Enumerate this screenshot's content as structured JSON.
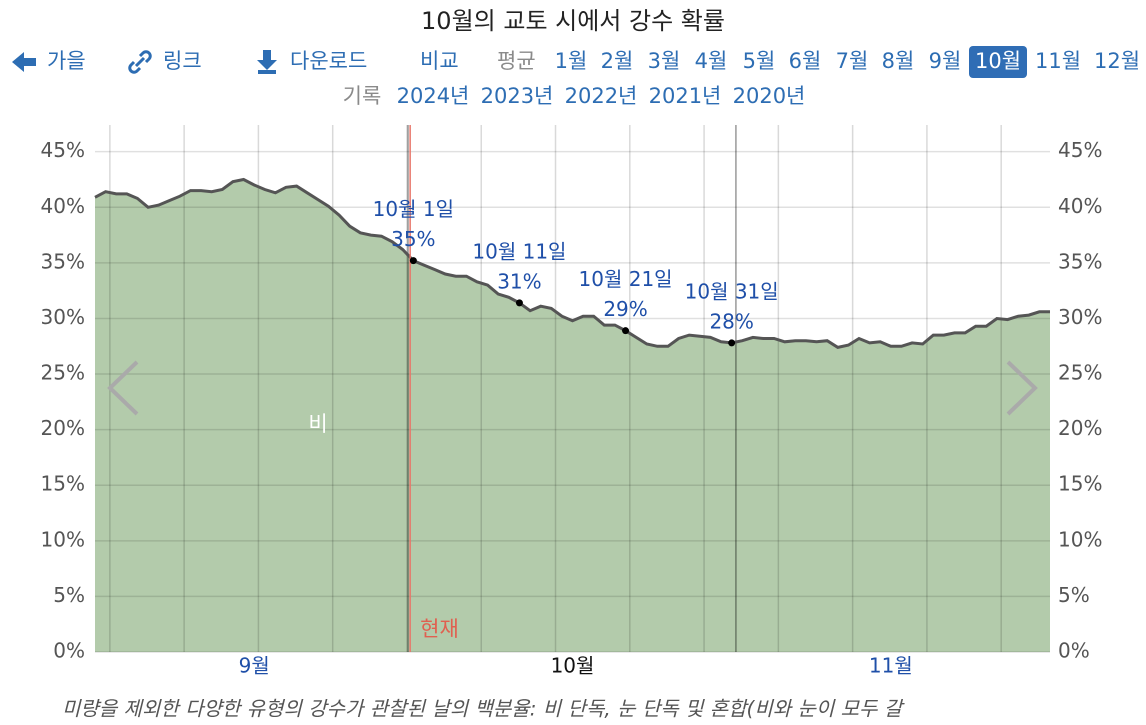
{
  "header": {
    "title": "10월의 교토 시에서 강수 확률",
    "nav": [
      "가을",
      "링크",
      "다운로드",
      "비교"
    ],
    "averages_label": "평균",
    "months": [
      "1월",
      "2월",
      "3월",
      "4월",
      "5월",
      "6월",
      "7월",
      "8월",
      "9월",
      "10월",
      "11월",
      "12월"
    ],
    "active_month": 9,
    "records_label": "기록",
    "years": [
      "2024년",
      "2023년",
      "2022년",
      "2021년",
      "2020년"
    ]
  },
  "chart_data": {
    "type": "area",
    "categories": [
      null,
      null,
      null,
      null,
      null,
      null,
      null,
      null,
      null,
      null,
      null,
      null,
      null,
      null,
      null,
      "9월",
      null,
      null,
      null,
      null,
      null,
      null,
      null,
      null,
      null,
      null,
      null,
      null,
      null,
      null,
      null,
      null,
      null,
      null,
      null,
      null,
      null,
      null,
      null,
      null,
      null,
      null,
      null,
      null,
      null,
      "10월",
      null,
      null,
      null,
      null,
      null,
      null,
      null,
      null,
      null,
      null,
      null,
      null,
      null,
      null,
      null,
      null,
      null,
      null,
      null,
      null,
      null,
      null,
      null,
      null,
      null,
      null,
      null,
      null,
      null,
      "11월",
      null,
      null,
      null,
      null,
      null,
      null,
      null,
      null,
      null,
      null,
      null,
      null,
      null,
      null,
      null
    ],
    "series": [
      {
        "name": "비",
        "color": "#b3cbab",
        "line_color": "#555555",
        "values": [
          40.9,
          41.4,
          41.2,
          41.2,
          40.8,
          40.0,
          40.2,
          40.6,
          41.0,
          41.5,
          41.5,
          41.4,
          41.6,
          42.3,
          42.5,
          42.0,
          41.6,
          41.3,
          41.8,
          41.9,
          41.3,
          40.7,
          40.1,
          39.3,
          38.3,
          37.7,
          37.5,
          37.4,
          36.9,
          36.2,
          35.2,
          34.8,
          34.4,
          34.0,
          33.8,
          33.8,
          33.3,
          33.0,
          32.2,
          31.9,
          31.4,
          30.7,
          31.1,
          30.9,
          30.2,
          29.8,
          30.2,
          30.2,
          29.4,
          29.4,
          28.9,
          28.3,
          27.7,
          27.5,
          27.5,
          28.2,
          28.5,
          28.4,
          28.3,
          27.9,
          27.8,
          28.0,
          28.3,
          28.2,
          28.2,
          27.9,
          28.0,
          28.0,
          27.9,
          28.0,
          27.4,
          27.6,
          28.2,
          27.8,
          27.9,
          27.5,
          27.5,
          27.8,
          27.7,
          28.5,
          28.5,
          28.7,
          28.7,
          29.3,
          29.3,
          30.0,
          29.9,
          30.2,
          30.3,
          30.6,
          30.6
        ],
        "value_labels": [
          null,
          null,
          null,
          null,
          null,
          null,
          null,
          null,
          null,
          null,
          null,
          null,
          null,
          null,
          null,
          null,
          null,
          null,
          null,
          null,
          null,
          null,
          null,
          null,
          null,
          null,
          null,
          null,
          null,
          null,
          "35%",
          null,
          null,
          null,
          null,
          null,
          null,
          null,
          null,
          null,
          "31%",
          null,
          null,
          null,
          null,
          null,
          null,
          null,
          null,
          null,
          "29%",
          null,
          null,
          null,
          null,
          null,
          null,
          null,
          null,
          null,
          "28%",
          null,
          null,
          null,
          null,
          null,
          null,
          null,
          null,
          null,
          null,
          null,
          null,
          null,
          null,
          null,
          null,
          null,
          null,
          null,
          null,
          null,
          null,
          null,
          null,
          null,
          null,
          null,
          null,
          null,
          null
        ],
        "point_labels": [
          null,
          null,
          null,
          null,
          null,
          null,
          null,
          null,
          null,
          null,
          null,
          null,
          null,
          null,
          null,
          null,
          null,
          null,
          null,
          null,
          null,
          null,
          null,
          null,
          null,
          null,
          null,
          null,
          null,
          null,
          "10월 1일",
          null,
          null,
          null,
          null,
          null,
          null,
          null,
          null,
          null,
          "10월 11일",
          null,
          null,
          null,
          null,
          null,
          null,
          null,
          null,
          null,
          "10월 21일",
          null,
          null,
          null,
          null,
          null,
          null,
          null,
          null,
          null,
          "10월 31일",
          null,
          null,
          null,
          null,
          null,
          null,
          null,
          null,
          null,
          null,
          null,
          null,
          null,
          null,
          null,
          null,
          null,
          null,
          null,
          null,
          null,
          null,
          null,
          null,
          null,
          null,
          null,
          null,
          null,
          null
        ]
      }
    ],
    "ylim": [
      0,
      47.4
    ],
    "yticks": [
      {
        "value": 0,
        "label": "0%"
      },
      {
        "value": 5,
        "label": "5%"
      },
      {
        "value": 10,
        "label": "10%"
      },
      {
        "value": 15,
        "label": "15%"
      },
      {
        "value": 20,
        "label": "20%"
      },
      {
        "value": 25,
        "label": "25%"
      },
      {
        "value": 30,
        "label": "30%"
      },
      {
        "value": 35,
        "label": "35%"
      },
      {
        "value": 40,
        "label": "40%"
      },
      {
        "value": 45,
        "label": "45%"
      }
    ],
    "grid": true,
    "now_label": "현재",
    "caption": "미량을 제외한 다양한 유형의 강수가 관찰된 날의 백분율: 비 단독, 눈 단독 및 혼합(비와 눈이 모두 갈"
  }
}
